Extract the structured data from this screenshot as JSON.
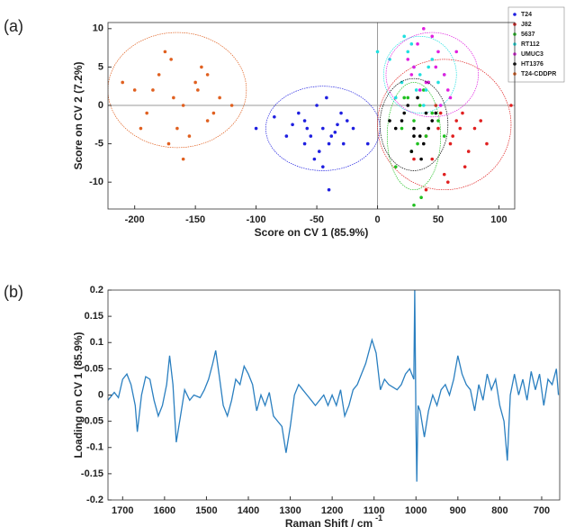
{
  "chart_data": [
    {
      "type": "scatter",
      "panel_label": "(a)",
      "xlabel": "Score on CV 1 (85.9%)",
      "ylabel": "Score on CV 2 (7.2%)",
      "xlim": [
        -222,
        113
      ],
      "ylim": [
        -13.5,
        10.8
      ],
      "xticks": [
        -200,
        -150,
        -100,
        -50,
        0,
        50,
        100
      ],
      "yticks": [
        -10,
        -5,
        0,
        5,
        10
      ],
      "zero_lines": true,
      "legend": "upper right",
      "series": [
        {
          "name": "T24",
          "color": "#1f1fe0",
          "x": [
            -60,
            -45,
            -30,
            -55,
            -70,
            -40,
            -50,
            -35,
            -25,
            -65,
            -48,
            -38,
            -58,
            -42,
            -20,
            -75,
            -52,
            -33,
            -45,
            -60,
            -28,
            -100,
            -8,
            -40,
            -85
          ],
          "y": [
            -2,
            -3,
            -1,
            -4,
            -2.5,
            -5,
            0,
            -3.5,
            -2,
            -1,
            -6,
            -4,
            -3,
            1,
            -3,
            -4,
            -7,
            -2.5,
            -8,
            -5,
            -5,
            -3,
            -5,
            -11,
            -1.5
          ],
          "ellipse": {
            "cx": -45,
            "cy": -3,
            "rx": 47,
            "ry": 5.5
          }
        },
        {
          "name": "J82",
          "color": "#e02020",
          "x": [
            50,
            60,
            70,
            45,
            80,
            55,
            65,
            75,
            40,
            85,
            58,
            48,
            62,
            90,
            30,
            72,
            52,
            68,
            110,
            40
          ],
          "y": [
            -3,
            -5,
            -1,
            -7,
            -3,
            -9,
            -2,
            -6,
            -4,
            -2,
            -10,
            0,
            -4,
            -5,
            -7,
            -8,
            -1,
            -3,
            0,
            -11
          ],
          "ellipse": {
            "cx": 55,
            "cy": -2.5,
            "rx": 55,
            "ry": 8.5
          }
        },
        {
          "name": "5637",
          "color": "#20c020",
          "x": [
            30,
            35,
            40,
            25,
            45,
            20,
            38,
            28,
            50,
            33,
            42,
            15,
            30,
            55,
            22,
            36
          ],
          "y": [
            -2,
            0,
            -4,
            1,
            -1,
            -3,
            2,
            -6,
            -2,
            -5,
            3,
            -8,
            -13,
            -4,
            1,
            -12
          ],
          "ellipse": {
            "cx": 30,
            "cy": -4,
            "rx": 22,
            "ry": 7
          }
        },
        {
          "name": "RT112",
          "color": "#20e0e0",
          "x": [
            20,
            30,
            40,
            25,
            35,
            45,
            15,
            50,
            28,
            38,
            10,
            55,
            32,
            22,
            42,
            0
          ],
          "y": [
            3,
            5,
            2,
            7,
            4,
            6,
            1,
            3,
            8,
            0,
            6,
            4,
            2,
            9,
            5,
            7
          ],
          "ellipse": {
            "cx": 35,
            "cy": 4,
            "rx": 30,
            "ry": 5
          }
        },
        {
          "name": "UMUC3",
          "color": "#e020e0",
          "x": [
            30,
            40,
            50,
            35,
            45,
            55,
            25,
            60,
            38,
            48,
            42,
            65,
            52,
            33,
            28,
            58
          ],
          "y": [
            5,
            3,
            7,
            2,
            9,
            4,
            6,
            1,
            10,
            5,
            3,
            7,
            0,
            8,
            4,
            2
          ],
          "ellipse": {
            "cx": 45,
            "cy": 4,
            "rx": 38,
            "ry": 5.5
          }
        },
        {
          "name": "HT1376",
          "color": "#000000",
          "x": [
            20,
            30,
            40,
            25,
            35,
            45,
            15,
            28,
            38,
            33,
            22,
            42,
            10,
            30,
            48,
            36
          ],
          "y": [
            -2,
            -3,
            -1,
            0,
            -4,
            -2,
            -3,
            -6,
            -5,
            1,
            -1,
            -3,
            -2,
            -4,
            -1,
            -7
          ],
          "ellipse": {
            "cx": 30,
            "cy": -2.5,
            "rx": 28,
            "ry": 6
          }
        },
        {
          "name": "T24-CDDPR",
          "color": "#e06020",
          "x": [
            -200,
            -180,
            -160,
            -140,
            -170,
            -150,
            -190,
            -130,
            -165,
            -145,
            -185,
            -155,
            -175,
            -135,
            -210,
            -120,
            -160,
            -195,
            -148,
            -172,
            -140,
            -168
          ],
          "y": [
            2,
            4,
            0,
            -2,
            6,
            3,
            -1,
            1,
            -3,
            5,
            2,
            -4,
            7,
            -1,
            3,
            0,
            -7,
            -3,
            2,
            -5,
            4,
            1
          ],
          "ellipse": {
            "cx": -165,
            "cy": 2,
            "rx": 57,
            "ry": 7.5
          }
        }
      ]
    },
    {
      "type": "line",
      "panel_label": "(b)",
      "xlabel": "Raman Shift / cm",
      "xlabel_superscript": "-1",
      "ylabel": "Loading on CV 1 (85.9%)",
      "xlim": [
        1735,
        657
      ],
      "ylim": [
        -0.2,
        0.2
      ],
      "xticks": [
        1700,
        1600,
        1500,
        1400,
        1300,
        1200,
        1100,
        1000,
        900,
        800,
        700
      ],
      "yticks": [
        0.2,
        0.15,
        0.1,
        0.05,
        0,
        -0.05,
        -0.1,
        -0.15,
        -0.2
      ],
      "color": "#2a7fc0",
      "x": [
        1735,
        1720,
        1710,
        1700,
        1690,
        1680,
        1670,
        1665,
        1655,
        1645,
        1635,
        1625,
        1615,
        1605,
        1595,
        1588,
        1580,
        1572,
        1562,
        1552,
        1540,
        1530,
        1515,
        1505,
        1495,
        1485,
        1478,
        1470,
        1460,
        1450,
        1440,
        1430,
        1420,
        1410,
        1400,
        1390,
        1380,
        1370,
        1360,
        1350,
        1340,
        1330,
        1320,
        1310,
        1300,
        1290,
        1280,
        1270,
        1260,
        1250,
        1240,
        1230,
        1220,
        1210,
        1200,
        1190,
        1180,
        1170,
        1160,
        1150,
        1140,
        1130,
        1120,
        1105,
        1095,
        1085,
        1075,
        1065,
        1055,
        1045,
        1035,
        1025,
        1015,
        1005,
        1003,
        1000,
        998,
        995,
        990,
        980,
        970,
        960,
        950,
        940,
        930,
        920,
        910,
        900,
        890,
        880,
        870,
        860,
        850,
        840,
        830,
        820,
        810,
        800,
        790,
        782,
        775,
        765,
        755,
        745,
        735,
        725,
        715,
        705,
        695,
        685,
        675,
        665,
        660
      ],
      "y": [
        -0.01,
        0.005,
        -0.005,
        0.03,
        0.04,
        0.02,
        -0.02,
        -0.07,
        0,
        0.035,
        0.03,
        -0.01,
        -0.04,
        -0.02,
        0.02,
        0.075,
        0.02,
        -0.09,
        -0.04,
        0.01,
        -0.01,
        0,
        -0.005,
        0.01,
        0.03,
        0.06,
        0.085,
        0.04,
        -0.02,
        -0.04,
        -0.01,
        0.03,
        0.02,
        0.055,
        0.04,
        0.02,
        -0.03,
        0,
        -0.02,
        0.005,
        -0.04,
        -0.05,
        -0.06,
        -0.11,
        -0.06,
        0,
        0.02,
        0.01,
        0,
        -0.01,
        -0.02,
        -0.01,
        0,
        -0.02,
        0,
        -0.02,
        0.01,
        -0.04,
        -0.02,
        0.01,
        0.02,
        0.04,
        0.06,
        0.105,
        0.08,
        0.01,
        0.03,
        0.02,
        0.015,
        0.01,
        0.02,
        0.04,
        0.05,
        0.03,
        0.2,
        -0.06,
        -0.165,
        -0.02,
        -0.03,
        -0.08,
        -0.03,
        0,
        -0.02,
        0.01,
        0.02,
        0,
        0.03,
        0.075,
        0.04,
        0.02,
        0.01,
        -0.03,
        0.02,
        -0.01,
        0.04,
        0.01,
        0.03,
        -0.02,
        -0.05,
        -0.125,
        0,
        0.04,
        0,
        0.03,
        -0.01,
        0.045,
        0.01,
        0.04,
        -0.02,
        0.03,
        0.02,
        0.05,
        0
      ]
    }
  ]
}
